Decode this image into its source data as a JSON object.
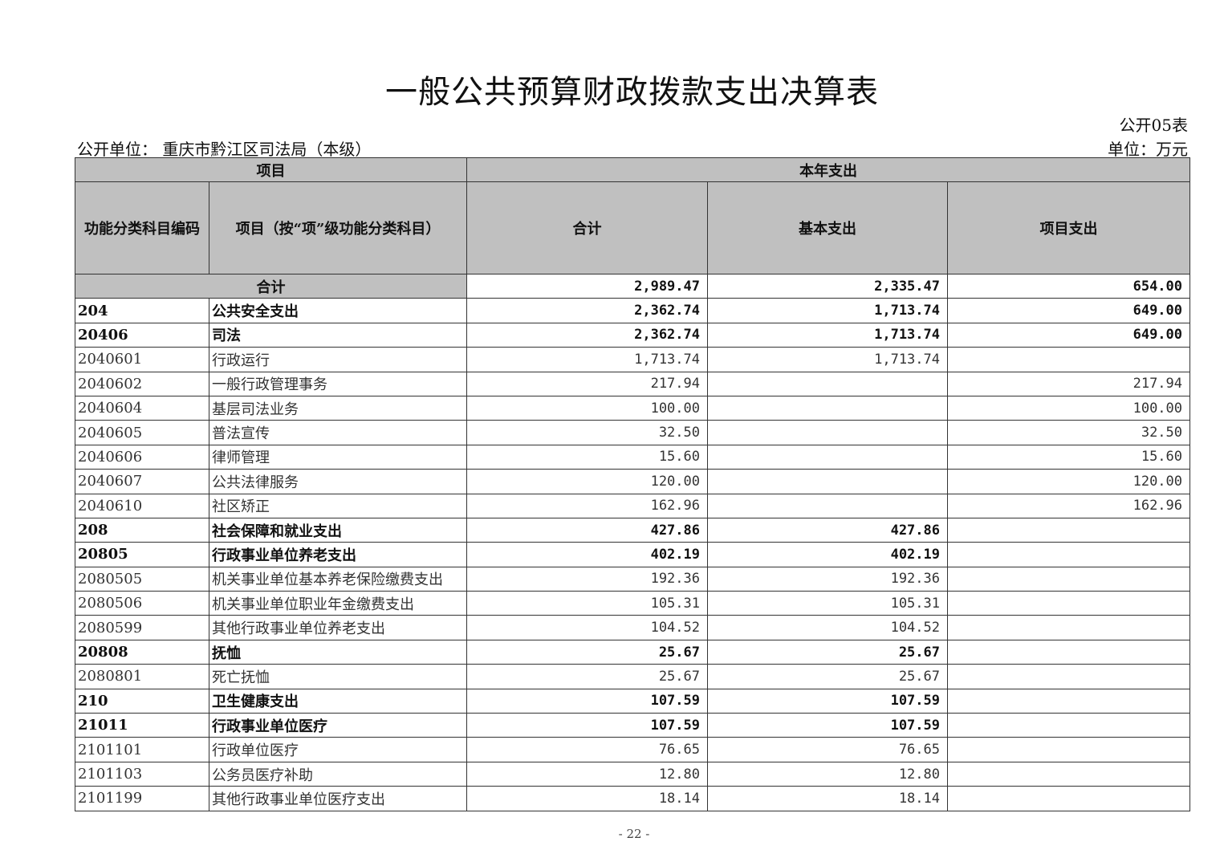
{
  "title": "一般公共预算财政拨款支出决算表",
  "form_no": "公开05表",
  "unit_label": "公开单位：  重庆市黔江区司法局（本级）",
  "currency_unit": "单位：万元",
  "header": {
    "project": "项目",
    "current_year": "本年支出",
    "code": "功能分类科目编码",
    "item": "项目（按“项”级功能分类科目）",
    "total": "合计",
    "basic": "基本支出",
    "project_exp": "项目支出"
  },
  "total_row": {
    "label": "合计",
    "total": "2,989.47",
    "basic": "2,335.47",
    "project": "654.00"
  },
  "rows": [
    {
      "code": "204",
      "name": "公共安全支出",
      "total": "2,362.74",
      "basic": "1,713.74",
      "project": "649.00",
      "bold": true
    },
    {
      "code": "20406",
      "name": "司法",
      "total": "2,362.74",
      "basic": "1,713.74",
      "project": "649.00",
      "bold": true
    },
    {
      "code": "2040601",
      "name": "行政运行",
      "total": "1,713.74",
      "basic": "1,713.74",
      "project": "",
      "bold": false
    },
    {
      "code": "2040602",
      "name": "一般行政管理事务",
      "total": "217.94",
      "basic": "",
      "project": "217.94",
      "bold": false
    },
    {
      "code": "2040604",
      "name": "基层司法业务",
      "total": "100.00",
      "basic": "",
      "project": "100.00",
      "bold": false
    },
    {
      "code": "2040605",
      "name": "普法宣传",
      "total": "32.50",
      "basic": "",
      "project": "32.50",
      "bold": false
    },
    {
      "code": "2040606",
      "name": "律师管理",
      "total": "15.60",
      "basic": "",
      "project": "15.60",
      "bold": false
    },
    {
      "code": "2040607",
      "name": "公共法律服务",
      "total": "120.00",
      "basic": "",
      "project": "120.00",
      "bold": false
    },
    {
      "code": "2040610",
      "name": "社区矫正",
      "total": "162.96",
      "basic": "",
      "project": "162.96",
      "bold": false
    },
    {
      "code": "208",
      "name": "社会保障和就业支出",
      "total": "427.86",
      "basic": "427.86",
      "project": "",
      "bold": true
    },
    {
      "code": "20805",
      "name": "行政事业单位养老支出",
      "total": "402.19",
      "basic": "402.19",
      "project": "",
      "bold": true
    },
    {
      "code": "2080505",
      "name": "机关事业单位基本养老保险缴费支出",
      "total": "192.36",
      "basic": "192.36",
      "project": "",
      "bold": false
    },
    {
      "code": "2080506",
      "name": "机关事业单位职业年金缴费支出",
      "total": "105.31",
      "basic": "105.31",
      "project": "",
      "bold": false
    },
    {
      "code": "2080599",
      "name": "其他行政事业单位养老支出",
      "total": "104.52",
      "basic": "104.52",
      "project": "",
      "bold": false
    },
    {
      "code": "20808",
      "name": "抚恤",
      "total": "25.67",
      "basic": "25.67",
      "project": "",
      "bold": true
    },
    {
      "code": "2080801",
      "name": "死亡抚恤",
      "total": "25.67",
      "basic": "25.67",
      "project": "",
      "bold": false
    },
    {
      "code": "210",
      "name": "卫生健康支出",
      "total": "107.59",
      "basic": "107.59",
      "project": "",
      "bold": true
    },
    {
      "code": "21011",
      "name": "行政事业单位医疗",
      "total": "107.59",
      "basic": "107.59",
      "project": "",
      "bold": true
    },
    {
      "code": "2101101",
      "name": "行政单位医疗",
      "total": "76.65",
      "basic": "76.65",
      "project": "",
      "bold": false
    },
    {
      "code": "2101103",
      "name": "公务员医疗补助",
      "total": "12.80",
      "basic": "12.80",
      "project": "",
      "bold": false
    },
    {
      "code": "2101199",
      "name": "其他行政事业单位医疗支出",
      "total": "18.14",
      "basic": "18.14",
      "project": "",
      "bold": false
    }
  ],
  "page_number": "- 22 -"
}
